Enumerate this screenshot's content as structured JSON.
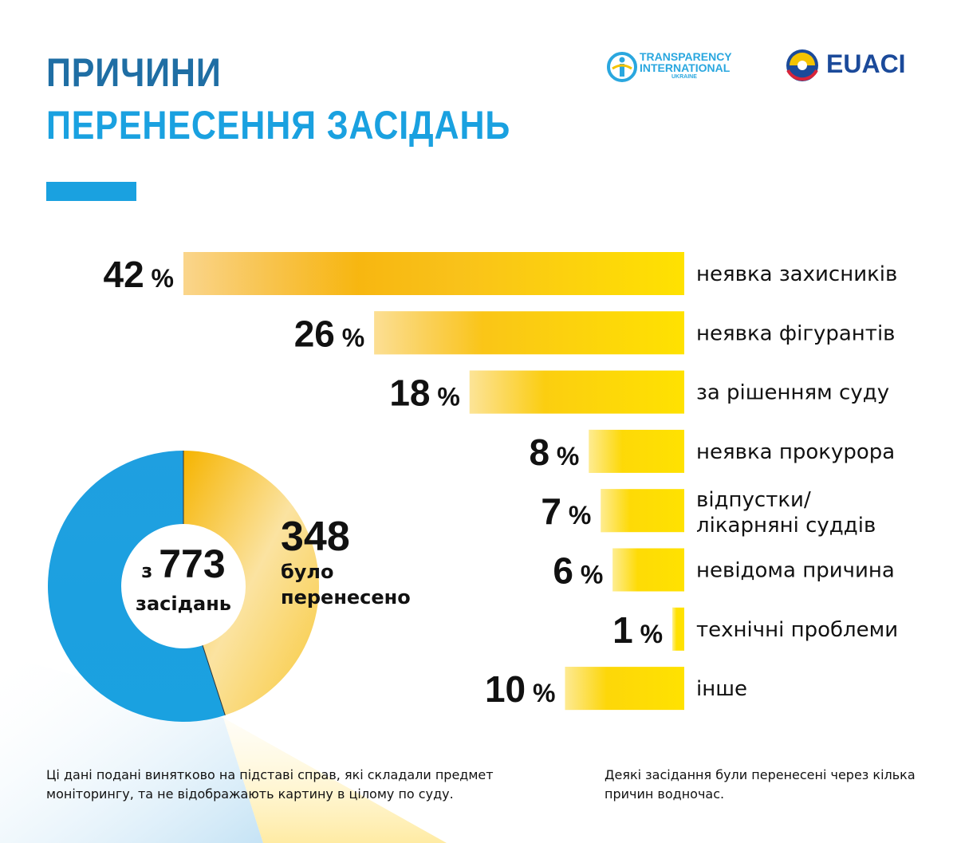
{
  "header": {
    "title_line1": "ПРИЧИНИ",
    "title_line2": "ПЕРЕНЕСЕННЯ ЗАСІДАНЬ"
  },
  "logos": {
    "ti_line1": "TRANSPARENCY",
    "ti_line2": "INTERNATIONAL",
    "ti_line3": "UKRAINE",
    "euaci": "EUACI"
  },
  "colors": {
    "title_dark": "#1f6ea4",
    "title_light": "#1aa1e0",
    "donut_blue": "#1aa1e0",
    "bar_orange": "#f4a300",
    "bar_yellow": "#ffe000"
  },
  "chart_data": [
    {
      "type": "bar",
      "orientation": "horizontal",
      "categories": [
        "неявка захисників",
        "неявка фігурантів",
        "за рішенням суду",
        "неявка прокурора",
        "відпустки/ лікарняні суддів",
        "невідома причина",
        "технічні проблеми",
        "інше"
      ],
      "values": [
        42,
        26,
        18,
        8,
        7,
        6,
        1,
        10
      ],
      "unit": "%",
      "value_labels": [
        "42",
        "26",
        "18",
        "8",
        "7",
        "6",
        "1",
        "10"
      ]
    },
    {
      "type": "pie",
      "variant": "donut",
      "total": 773,
      "slices": [
        {
          "value": 348,
          "color": "#f6c24a"
        },
        {
          "value": 425,
          "color": "#1aa1e0"
        }
      ]
    }
  ],
  "donut": {
    "prefix": "з",
    "total_label": "773",
    "total_caption": "засідань",
    "postponed_value": "348",
    "postponed_line1": "було",
    "postponed_line2": "перенесено"
  },
  "notes": {
    "left": "Ці дані подані винятково на підставі справ, які складали предмет моніторингу, та не відображають картину в цілому по суду.",
    "right": "Деякі засідання були перенесені через кілька причин водночас."
  }
}
